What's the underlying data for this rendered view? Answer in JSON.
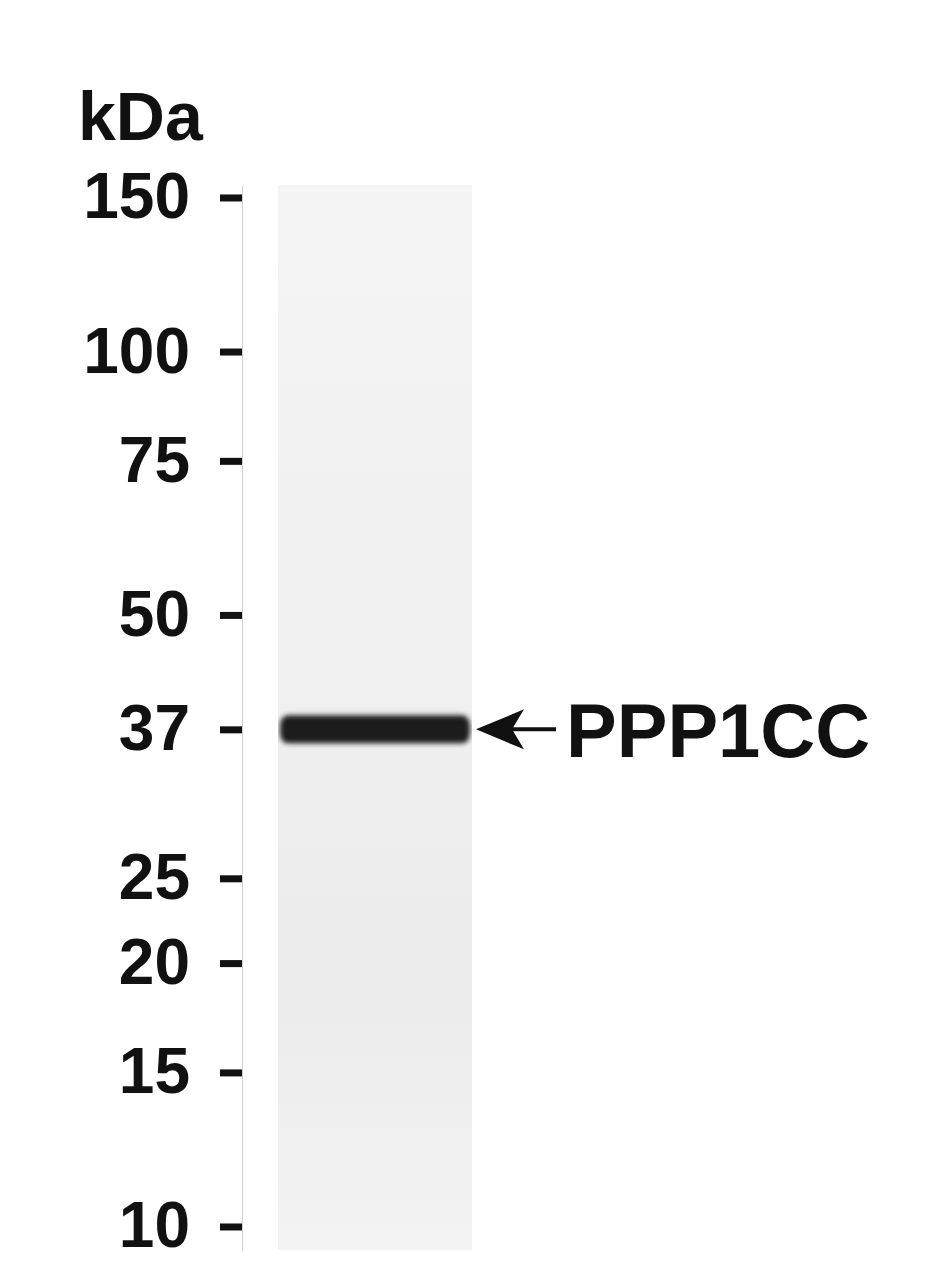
{
  "chart_data": {
    "type": "western_blot",
    "title": "kDa",
    "categories": [
      null
    ],
    "values": [
      37
    ],
    "annotations": [
      {
        "text": "PPP1CC",
        "value": 37
      }
    ],
    "ylim": [
      9.4,
      155
    ],
    "yticks": [
      10,
      15,
      20,
      25,
      37,
      50,
      75,
      100,
      150
    ],
    "log": "y",
    "tick_labels": "y"
  }
}
